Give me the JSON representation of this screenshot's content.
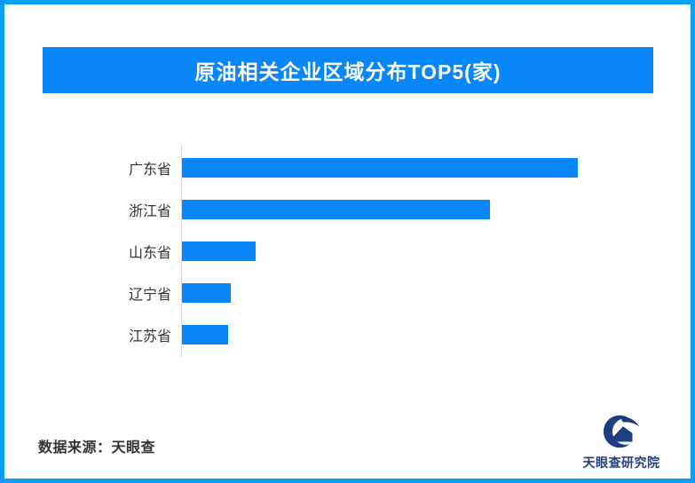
{
  "page": {
    "background": "#ffffff",
    "border_color": "#0a9df9"
  },
  "title_banner": {
    "bg": "#0886fa",
    "text_color": "#ffffff"
  },
  "chart_data": {
    "type": "bar",
    "orientation": "horizontal",
    "title": "原油相关企业区域分布TOP5(家)",
    "categories": [
      "广东省",
      "浙江省",
      "山东省",
      "辽宁省",
      "江苏省"
    ],
    "values": [
      100,
      77.8,
      18.7,
      12.4,
      11.7
    ],
    "note": "no numeric axis ticks or data labels are shown in the image; values estimated from bar lengths with longest bar normalized to 100",
    "xlim": [
      0,
      121
    ],
    "xlabel": "",
    "ylabel": "",
    "grid": false,
    "legend": false,
    "bar_color": "#0886fa",
    "axis_line_color": "#d9d9d9",
    "label_color": "#333333"
  },
  "footer": {
    "source": "数据来源：天眼查",
    "brand": "天眼查研究院",
    "logo_color": "#1e3e80"
  }
}
